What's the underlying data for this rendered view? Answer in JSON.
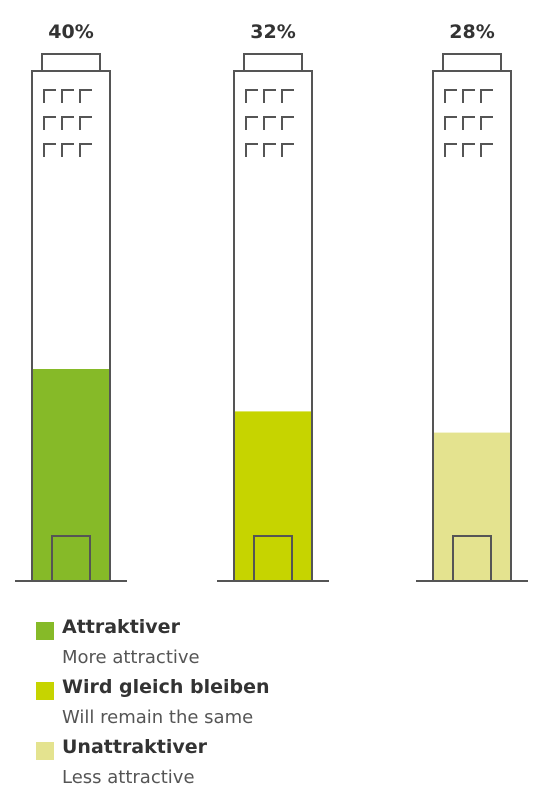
{
  "chart_data": {
    "type": "bar",
    "categories": [
      "Attraktiver",
      "Wird gleich bleiben",
      "Unattraktiver"
    ],
    "values": [
      40,
      32,
      28
    ],
    "value_labels": [
      "40%",
      "32%",
      "28%"
    ],
    "colors": [
      "#86ba28",
      "#c6d400",
      "#e4e38f"
    ],
    "ylim": [
      0,
      100
    ]
  },
  "legend": [
    {
      "title": "Attraktiver",
      "subtitle": "More attractive",
      "color": "#86ba28"
    },
    {
      "title": "Wird gleich bleiben",
      "subtitle": "Will remain the same",
      "color": "#c6d400"
    },
    {
      "title": "Unattraktiver",
      "subtitle": "Less attractive",
      "color": "#e4e38f"
    }
  ]
}
